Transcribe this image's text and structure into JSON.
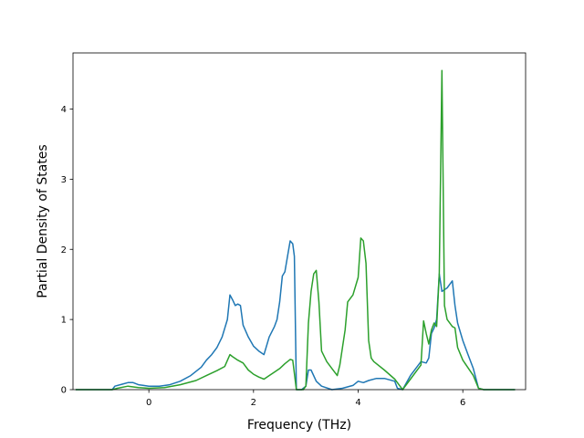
{
  "chart_data": {
    "type": "line",
    "title": "",
    "xlabel": "Frequency (THz)",
    "ylabel": "Partial Density of States",
    "xlim": [
      -1.45,
      7.2
    ],
    "ylim": [
      0,
      4.8
    ],
    "xticks": [
      0,
      2,
      4,
      6
    ],
    "yticks": [
      0,
      1,
      2,
      3,
      4
    ],
    "grid": false,
    "legend": "none",
    "series": [
      {
        "color": "#1f77b4",
        "points": [
          [
            -1.4,
            0
          ],
          [
            -0.7,
            0
          ],
          [
            -0.65,
            0.05
          ],
          [
            -0.5,
            0.08
          ],
          [
            -0.4,
            0.1
          ],
          [
            -0.3,
            0.1
          ],
          [
            -0.2,
            0.07
          ],
          [
            -0.1,
            0.06
          ],
          [
            0.0,
            0.05
          ],
          [
            0.2,
            0.05
          ],
          [
            0.4,
            0.07
          ],
          [
            0.6,
            0.12
          ],
          [
            0.8,
            0.2
          ],
          [
            1.0,
            0.32
          ],
          [
            1.1,
            0.42
          ],
          [
            1.2,
            0.5
          ],
          [
            1.3,
            0.6
          ],
          [
            1.4,
            0.75
          ],
          [
            1.5,
            1.0
          ],
          [
            1.55,
            1.35
          ],
          [
            1.6,
            1.28
          ],
          [
            1.65,
            1.2
          ],
          [
            1.7,
            1.22
          ],
          [
            1.75,
            1.2
          ],
          [
            1.8,
            0.92
          ],
          [
            1.9,
            0.75
          ],
          [
            2.0,
            0.62
          ],
          [
            2.1,
            0.55
          ],
          [
            2.2,
            0.5
          ],
          [
            2.3,
            0.75
          ],
          [
            2.4,
            0.9
          ],
          [
            2.45,
            1.0
          ],
          [
            2.5,
            1.25
          ],
          [
            2.55,
            1.62
          ],
          [
            2.6,
            1.68
          ],
          [
            2.65,
            1.9
          ],
          [
            2.7,
            2.12
          ],
          [
            2.75,
            2.08
          ],
          [
            2.78,
            1.9
          ],
          [
            2.82,
            0
          ],
          [
            2.92,
            0
          ],
          [
            3.0,
            0.05
          ],
          [
            3.05,
            0.28
          ],
          [
            3.1,
            0.28
          ],
          [
            3.2,
            0.12
          ],
          [
            3.3,
            0.05
          ],
          [
            3.5,
            0
          ],
          [
            3.7,
            0.02
          ],
          [
            3.9,
            0.06
          ],
          [
            4.0,
            0.12
          ],
          [
            4.1,
            0.1
          ],
          [
            4.2,
            0.13
          ],
          [
            4.35,
            0.16
          ],
          [
            4.5,
            0.16
          ],
          [
            4.7,
            0.12
          ],
          [
            4.75,
            0.02
          ],
          [
            4.85,
            0
          ],
          [
            5.0,
            0.2
          ],
          [
            5.2,
            0.4
          ],
          [
            5.3,
            0.38
          ],
          [
            5.35,
            0.45
          ],
          [
            5.4,
            0.8
          ],
          [
            5.45,
            0.88
          ],
          [
            5.5,
            1.0
          ],
          [
            5.55,
            1.65
          ],
          [
            5.6,
            1.4
          ],
          [
            5.7,
            1.45
          ],
          [
            5.8,
            1.55
          ],
          [
            5.85,
            1.2
          ],
          [
            5.9,
            0.95
          ],
          [
            6.0,
            0.7
          ],
          [
            6.1,
            0.5
          ],
          [
            6.2,
            0.3
          ],
          [
            6.3,
            0.02
          ],
          [
            6.4,
            0
          ],
          [
            7.0,
            0
          ]
        ]
      },
      {
        "color": "#2ca02c",
        "points": [
          [
            -1.4,
            0
          ],
          [
            -0.7,
            0
          ],
          [
            -0.6,
            0.02
          ],
          [
            -0.4,
            0.05
          ],
          [
            -0.2,
            0.03
          ],
          [
            0.0,
            0.02
          ],
          [
            0.3,
            0.03
          ],
          [
            0.6,
            0.07
          ],
          [
            0.9,
            0.13
          ],
          [
            1.1,
            0.2
          ],
          [
            1.3,
            0.27
          ],
          [
            1.45,
            0.33
          ],
          [
            1.55,
            0.5
          ],
          [
            1.6,
            0.47
          ],
          [
            1.7,
            0.42
          ],
          [
            1.8,
            0.38
          ],
          [
            1.9,
            0.28
          ],
          [
            2.0,
            0.22
          ],
          [
            2.1,
            0.18
          ],
          [
            2.2,
            0.15
          ],
          [
            2.3,
            0.2
          ],
          [
            2.4,
            0.25
          ],
          [
            2.5,
            0.3
          ],
          [
            2.6,
            0.37
          ],
          [
            2.7,
            0.43
          ],
          [
            2.75,
            0.42
          ],
          [
            2.82,
            0
          ],
          [
            2.95,
            0
          ],
          [
            3.0,
            0.05
          ],
          [
            3.05,
            0.95
          ],
          [
            3.1,
            1.4
          ],
          [
            3.15,
            1.65
          ],
          [
            3.2,
            1.7
          ],
          [
            3.25,
            1.25
          ],
          [
            3.3,
            0.55
          ],
          [
            3.4,
            0.4
          ],
          [
            3.5,
            0.3
          ],
          [
            3.6,
            0.2
          ],
          [
            3.65,
            0.35
          ],
          [
            3.7,
            0.6
          ],
          [
            3.75,
            0.85
          ],
          [
            3.8,
            1.25
          ],
          [
            3.9,
            1.35
          ],
          [
            4.0,
            1.6
          ],
          [
            4.05,
            2.16
          ],
          [
            4.1,
            2.12
          ],
          [
            4.15,
            1.8
          ],
          [
            4.2,
            0.7
          ],
          [
            4.25,
            0.45
          ],
          [
            4.3,
            0.4
          ],
          [
            4.5,
            0.28
          ],
          [
            4.7,
            0.15
          ],
          [
            4.8,
            0.05
          ],
          [
            4.85,
            0
          ],
          [
            5.0,
            0.15
          ],
          [
            5.2,
            0.35
          ],
          [
            5.25,
            0.98
          ],
          [
            5.3,
            0.8
          ],
          [
            5.35,
            0.65
          ],
          [
            5.4,
            0.85
          ],
          [
            5.45,
            0.95
          ],
          [
            5.5,
            0.9
          ],
          [
            5.55,
            1.65
          ],
          [
            5.6,
            4.55
          ],
          [
            5.65,
            1.2
          ],
          [
            5.7,
            1.0
          ],
          [
            5.8,
            0.9
          ],
          [
            5.85,
            0.88
          ],
          [
            5.9,
            0.6
          ],
          [
            6.0,
            0.42
          ],
          [
            6.2,
            0.2
          ],
          [
            6.3,
            0.02
          ],
          [
            6.4,
            0
          ],
          [
            7.0,
            0
          ]
        ]
      }
    ]
  }
}
